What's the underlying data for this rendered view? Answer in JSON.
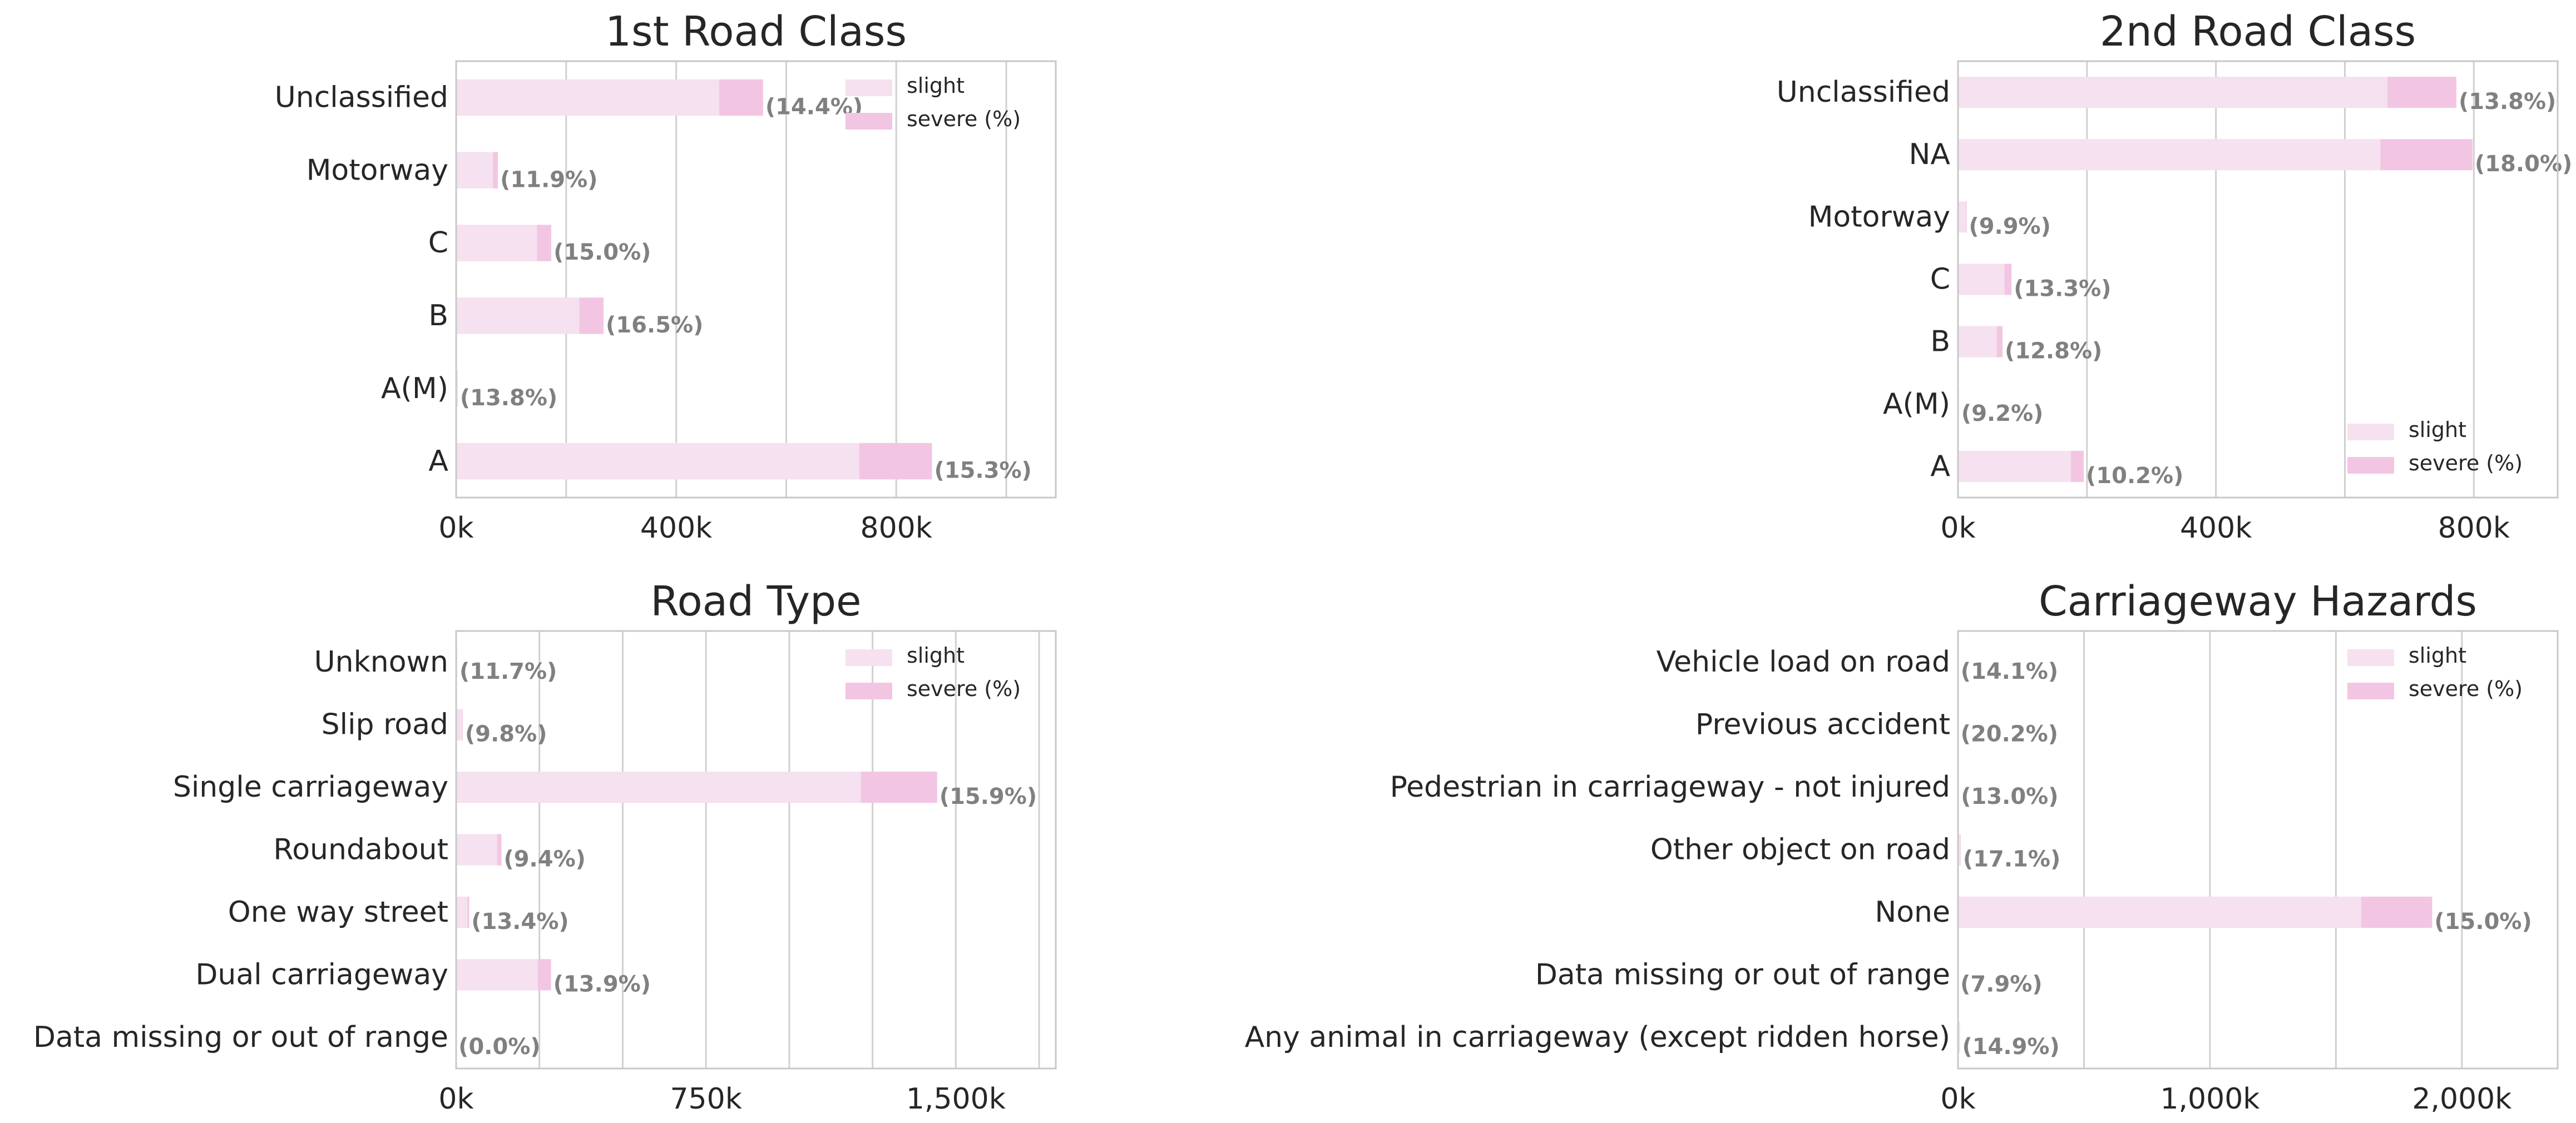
{
  "colors": {
    "slight": "#f5e1ef",
    "severe": "#f2c6e3",
    "grid": "#d0d0d0",
    "frame": "#c8c8c8",
    "text": "#262626",
    "pct_label": "#808080"
  },
  "chart_data": [
    {
      "id": "road-class-1",
      "type": "bar",
      "orientation": "horizontal",
      "stacked": true,
      "title": "1st Road Class",
      "categories": [
        "Unclassified",
        "Motorway",
        "C",
        "B",
        "A(M)",
        "A"
      ],
      "series": [
        {
          "name": "slight",
          "values": [
            478000,
            67000,
            147000,
            224000,
            2500,
            733000
          ]
        },
        {
          "name": "severe (%)",
          "values": [
            80000,
            9000,
            26000,
            44000,
            400,
            132000
          ]
        }
      ],
      "severe_pct_labels": [
        "(14.4%)",
        "(11.9%)",
        "(15.0%)",
        "(16.5%)",
        "(13.8%)",
        "(15.3%)"
      ],
      "xlim": [
        0,
        1090000
      ],
      "xticks": [
        0,
        400000,
        800000
      ],
      "xtick_labels": [
        "0k",
        "400k",
        "800k"
      ],
      "grid_step": 200000,
      "grid": true,
      "legend_position": "top-right"
    },
    {
      "id": "road-class-2",
      "type": "bar",
      "orientation": "horizontal",
      "stacked": true,
      "title": "2nd Road Class",
      "categories": [
        "Unclassified",
        "NA",
        "Motorway",
        "C",
        "B",
        "A(M)",
        "A"
      ],
      "series": [
        {
          "name": "slight",
          "values": [
            666000,
            655000,
            12000,
            72000,
            60000,
            1500,
            175000
          ]
        },
        {
          "name": "severe (%)",
          "values": [
            107000,
            143000,
            1300,
            11000,
            9000,
            150,
            20000
          ]
        }
      ],
      "severe_pct_labels": [
        "(13.8%)",
        "(18.0%)",
        "(9.9%)",
        "(13.3%)",
        "(12.8%)",
        "(9.2%)",
        "(10.2%)"
      ],
      "xlim": [
        0,
        930000
      ],
      "xticks": [
        0,
        400000,
        800000
      ],
      "xtick_labels": [
        "0k",
        "400k",
        "800k"
      ],
      "grid_step": 200000,
      "grid": true,
      "legend_position": "bottom-right"
    },
    {
      "id": "road-type",
      "type": "bar",
      "orientation": "horizontal",
      "stacked": true,
      "title": "Road Type",
      "categories": [
        "Unknown",
        "Slip road",
        "Single carriageway",
        "Roundabout",
        "One way street",
        "Dual carriageway",
        "Data missing or out of range"
      ],
      "series": [
        {
          "name": "slight",
          "values": [
            3000,
            18000,
            1215000,
            123000,
            34000,
            245000,
            300
          ]
        },
        {
          "name": "severe (%)",
          "values": [
            400,
            2000,
            229000,
            13000,
            5000,
            40000,
            0
          ]
        }
      ],
      "severe_pct_labels": [
        "(11.7%)",
        "(9.8%)",
        "(15.9%)",
        "(9.4%)",
        "(13.4%)",
        "(13.9%)",
        "(0.0%)"
      ],
      "xlim": [
        0,
        1800000
      ],
      "xticks": [
        0,
        750000,
        1500000
      ],
      "xtick_labels": [
        "0k",
        "750k",
        "1,500k"
      ],
      "grid_step": 250000,
      "grid": true,
      "legend_position": "top-right"
    },
    {
      "id": "carriageway-hazards",
      "type": "bar",
      "orientation": "horizontal",
      "stacked": true,
      "title": "Carriageway Hazards",
      "categories": [
        "Vehicle load on road",
        "Previous accident",
        "Pedestrian in carriageway - not injured",
        "Other object on road",
        "None",
        "Data missing or out of range",
        "Any animal in carriageway (except ridden horse)"
      ],
      "series": [
        {
          "name": "slight",
          "values": [
            1500,
            1200,
            2300,
            9000,
            1600000,
            300,
            6500
          ]
        },
        {
          "name": "severe (%)",
          "values": [
            250,
            300,
            350,
            1900,
            282000,
            25,
            1100
          ]
        }
      ],
      "severe_pct_labels": [
        "(14.1%)",
        "(20.2%)",
        "(13.0%)",
        "(17.1%)",
        "(15.0%)",
        "(7.9%)",
        "(14.9%)"
      ],
      "xlim": [
        0,
        2380000
      ],
      "xticks": [
        0,
        1000000,
        2000000
      ],
      "xtick_labels": [
        "0k",
        "1,000k",
        "2,000k"
      ],
      "grid_step": 500000,
      "grid": true,
      "legend_position": "top-right"
    }
  ]
}
